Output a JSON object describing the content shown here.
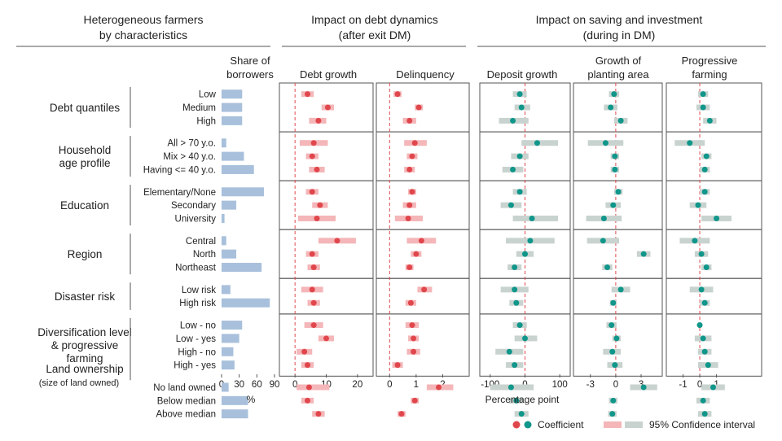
{
  "headers": {
    "group1": [
      "Heterogeneous farmers",
      "by characteristics"
    ],
    "group2": [
      "Impact on debt dynamics",
      "(after exit DM)"
    ],
    "group3": [
      "Impact on saving and investment",
      "(during in DM)"
    ]
  },
  "colors": {
    "debt_point": "#e0474c",
    "debt_ci": "#f4b6b8",
    "saving_point": "#10968a",
    "saving_ci": "#c8d3cf",
    "bar": "#a8c0db",
    "zero_line": "#e0474c",
    "frame": "#555555"
  },
  "x_titles": {
    "share": "%",
    "pp": "Percentage point"
  },
  "legend": {
    "coef": "Coefficient",
    "ci": "95% Confidence interval"
  },
  "groups": [
    {
      "label": [
        "Debt quantiles"
      ],
      "small": "",
      "rows": [
        "Low",
        "Medium",
        "High"
      ]
    },
    {
      "label": [
        "Household",
        "age profile"
      ],
      "small": "",
      "rows": [
        "All > 70 y.o.",
        "Mix > 40 y.o.",
        "Having <= 40 y.o."
      ]
    },
    {
      "label": [
        "Education"
      ],
      "small": "",
      "rows": [
        "Elementary/None",
        "Secondary",
        "University"
      ]
    },
    {
      "label": [
        "Region"
      ],
      "small": "",
      "rows": [
        "Central",
        "North",
        "Northeast"
      ]
    },
    {
      "label": [
        "Disaster risk"
      ],
      "small": "",
      "rows": [
        "Low risk",
        "High risk"
      ]
    },
    {
      "label": [
        "Diversification level",
        "& progressive",
        "farming"
      ],
      "small": "",
      "rows": [
        "Low - no",
        "Low - yes",
        "High - no",
        "High - yes"
      ]
    },
    {
      "label": [
        "Land  ownership"
      ],
      "small": "(size of land owned)",
      "rows": [
        "No land owned",
        "Below median",
        "Above median"
      ]
    }
  ],
  "chart_data": [
    {
      "type": "bar",
      "title": [
        "Share of",
        "borrowers"
      ],
      "xlabel": "%",
      "xlim": [
        0,
        90
      ],
      "ticks": [
        0,
        30,
        60,
        90
      ],
      "values": [
        35,
        35,
        35,
        8,
        38,
        55,
        72,
        25,
        5,
        8,
        25,
        68,
        15,
        82,
        35,
        30,
        20,
        22,
        12,
        45,
        45
      ]
    },
    {
      "type": "forest",
      "title": [
        "Debt growth"
      ],
      "family": "debt",
      "xlim": [
        -5,
        25
      ],
      "ticks": [
        0,
        10,
        20
      ],
      "coef": [
        4,
        10.5,
        7.5,
        6,
        5.5,
        7,
        5.5,
        8,
        7,
        13.5,
        5.5,
        6,
        5.5,
        6,
        6,
        10,
        3,
        4,
        4.5,
        4,
        7.5
      ],
      "lo": [
        2,
        8.5,
        4.5,
        1.5,
        3.5,
        4.5,
        3.5,
        5.5,
        1,
        7.5,
        3.5,
        4,
        2,
        4,
        3,
        7.5,
        0.5,
        2,
        0.5,
        2,
        5.5
      ],
      "hi": [
        6,
        12.5,
        10,
        10.5,
        7.5,
        9.5,
        7.5,
        10.5,
        13,
        19.5,
        7.5,
        8,
        9,
        8,
        9,
        12.5,
        5.5,
        6,
        11,
        6,
        9.5
      ]
    },
    {
      "type": "forest",
      "title": [
        "Delinquency"
      ],
      "family": "debt",
      "xlim": [
        -0.5,
        3.0
      ],
      "ticks": [
        0,
        1,
        2
      ],
      "coef": [
        0.3,
        1.1,
        0.75,
        0.95,
        0.85,
        0.75,
        0.85,
        0.75,
        0.7,
        1.2,
        1.0,
        0.75,
        1.3,
        0.8,
        0.85,
        0.9,
        0.9,
        0.3,
        1.85,
        0.95,
        0.45
      ],
      "lo": [
        0.15,
        0.95,
        0.5,
        0.55,
        0.65,
        0.55,
        0.7,
        0.5,
        0.2,
        0.65,
        0.8,
        0.6,
        1.05,
        0.6,
        0.6,
        0.7,
        0.65,
        0.1,
        1.4,
        0.8,
        0.3
      ],
      "hi": [
        0.45,
        1.25,
        1.0,
        1.4,
        1.05,
        0.95,
        1.0,
        1.0,
        1.25,
        1.75,
        1.2,
        0.9,
        1.6,
        1.0,
        1.1,
        1.1,
        1.15,
        0.5,
        2.4,
        1.1,
        0.6
      ]
    },
    {
      "type": "forest",
      "title": [
        "Deposit growth"
      ],
      "family": "saving",
      "xlim": [
        -130,
        130
      ],
      "ticks": [
        -100,
        0,
        100
      ],
      "coef": [
        -15,
        -10,
        -35,
        35,
        -15,
        -35,
        -15,
        -40,
        20,
        15,
        0,
        -30,
        -30,
        -25,
        -15,
        0,
        -45,
        -30,
        -40,
        -25,
        -10
      ],
      "lo": [
        -35,
        -30,
        -75,
        -10,
        -40,
        -65,
        -35,
        -70,
        -35,
        -55,
        -25,
        -50,
        -70,
        -45,
        -35,
        -30,
        -85,
        -55,
        -100,
        -45,
        -30
      ],
      "hi": [
        5,
        15,
        10,
        95,
        10,
        -5,
        5,
        -10,
        95,
        85,
        25,
        -10,
        10,
        -5,
        5,
        35,
        -5,
        -5,
        25,
        -5,
        10
      ]
    },
    {
      "type": "forest",
      "title": [
        "Growth of",
        "planting area"
      ],
      "family": "saving",
      "xlim": [
        -5,
        5.5
      ],
      "ticks": [
        -3,
        0,
        3
      ],
      "coef": [
        -0.2,
        -0.6,
        0.6,
        -1.2,
        -0.1,
        -0.1,
        0.3,
        -0.3,
        -1.4,
        -1.5,
        3.3,
        -1.0,
        0.6,
        -0.3,
        -0.5,
        0.1,
        -0.4,
        -0.1,
        3.3,
        -0.3,
        -0.4
      ],
      "lo": [
        -0.8,
        -1.4,
        -0.2,
        -3.3,
        -0.6,
        -0.6,
        -0.2,
        -1.2,
        -3.5,
        -3.4,
        2.5,
        -1.6,
        -0.5,
        -0.7,
        -1.1,
        -0.4,
        -1.5,
        -1.0,
        1.7,
        -0.8,
        -0.9
      ],
      "hi": [
        0.4,
        0.2,
        1.4,
        0.9,
        0.4,
        0.4,
        0.8,
        0.6,
        0.7,
        0.4,
        4.1,
        -0.4,
        1.7,
        0.1,
        0.1,
        0.6,
        0.6,
        0.8,
        4.9,
        0.2,
        0.1
      ]
    },
    {
      "type": "forest",
      "title": [
        "Progressive",
        "farming"
      ],
      "family": "saving",
      "xlim": [
        -2.0,
        3.7
      ],
      "ticks": [
        -1,
        0,
        1
      ],
      "coef": [
        0.2,
        0.2,
        0.6,
        -0.6,
        0.4,
        0.3,
        0.3,
        -0.1,
        1.0,
        -0.3,
        0.1,
        0.4,
        0.1,
        0.3,
        0.0,
        0.2,
        0.3,
        0.5,
        0.8,
        0.2,
        0.3
      ],
      "lo": [
        -0.1,
        -0.2,
        0.2,
        -1.5,
        0.1,
        0.0,
        0.0,
        -0.6,
        0.1,
        -1.2,
        -0.3,
        0.1,
        -0.6,
        0.0,
        -0.1,
        -0.3,
        -0.1,
        -0.1,
        0.1,
        -0.2,
        -0.1
      ],
      "hi": [
        0.5,
        0.6,
        1.0,
        0.3,
        0.7,
        0.6,
        0.6,
        0.4,
        1.9,
        0.6,
        0.5,
        0.7,
        0.8,
        0.6,
        0.1,
        0.7,
        0.7,
        1.1,
        1.5,
        0.6,
        0.7
      ]
    }
  ]
}
